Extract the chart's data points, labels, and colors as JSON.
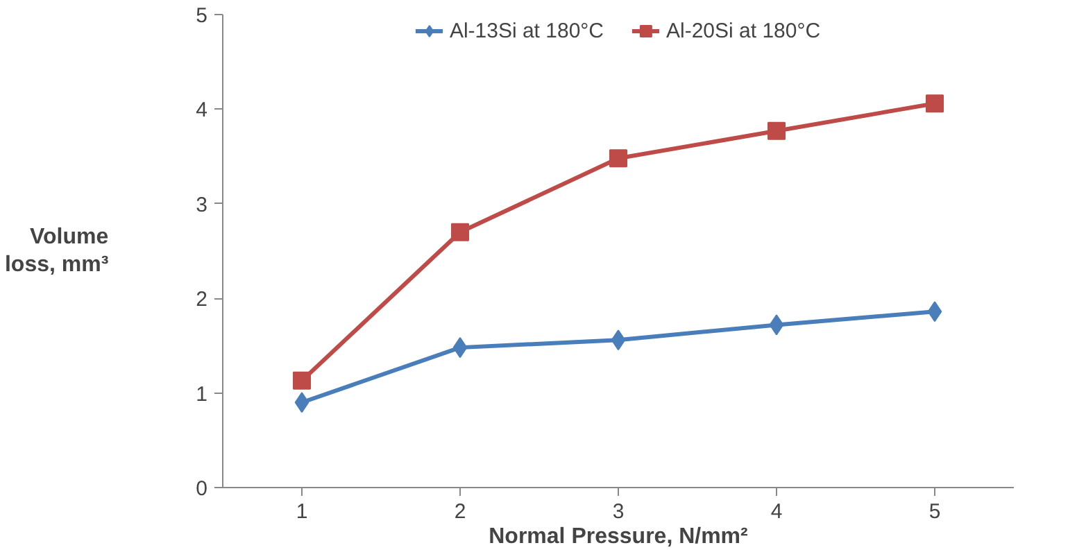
{
  "chart_data": {
    "type": "line",
    "xlabel": "Normal Pressure, N/mm²",
    "ylabel": "Volume\nloss, mm³",
    "categories": [
      "1",
      "2",
      "3",
      "4",
      "5"
    ],
    "series": [
      {
        "name": "Al-13Si at 180°C",
        "color": "#4a7ebb",
        "marker": "diamond",
        "values": [
          0.9,
          1.48,
          1.56,
          1.72,
          1.86
        ]
      },
      {
        "name": "Al-20Si at 180°C",
        "color": "#be4b48",
        "marker": "square",
        "values": [
          1.13,
          2.7,
          3.48,
          3.77,
          4.06
        ]
      }
    ],
    "ylim": [
      0,
      5
    ],
    "yticks": [
      0,
      1,
      2,
      3,
      4,
      5
    ],
    "grid": false,
    "legend": "top",
    "line_style": "solid"
  }
}
